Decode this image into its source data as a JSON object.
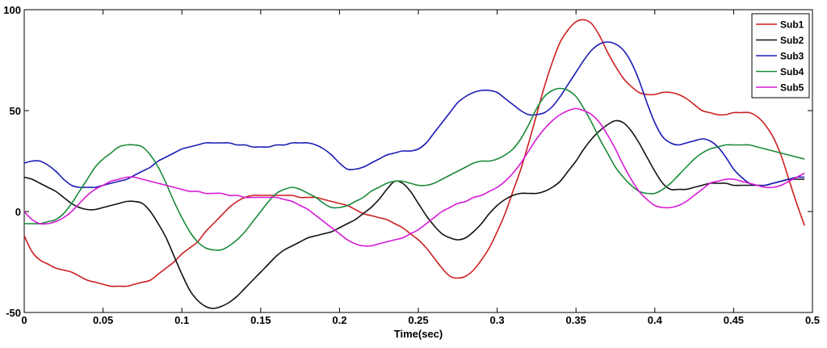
{
  "chart_data": {
    "type": "line",
    "title": "",
    "xlabel": "Time(sec)",
    "ylabel": "",
    "xlim": [
      0,
      0.5
    ],
    "ylim": [
      -50,
      100
    ],
    "xticks": [
      0,
      0.05,
      0.1,
      0.15,
      0.2,
      0.25,
      0.3,
      0.35,
      0.4,
      0.45,
      0.5
    ],
    "xtick_labels": [
      "0",
      "0.05",
      "0.1",
      "0.15",
      "0.2",
      "0.25",
      "0.3",
      "0.35",
      "0.4",
      "0.45",
      "0.5"
    ],
    "yticks": [
      -50,
      0,
      50,
      100
    ],
    "ytick_labels": [
      "-50",
      "0",
      "50",
      "100"
    ],
    "grid": false,
    "legend_position": "top-right",
    "x": [
      0,
      0.005,
      0.01,
      0.015,
      0.02,
      0.025,
      0.03,
      0.035,
      0.04,
      0.045,
      0.05,
      0.055,
      0.06,
      0.065,
      0.07,
      0.075,
      0.08,
      0.085,
      0.09,
      0.095,
      0.1,
      0.105,
      0.11,
      0.115,
      0.12,
      0.125,
      0.13,
      0.135,
      0.14,
      0.145,
      0.15,
      0.155,
      0.16,
      0.165,
      0.17,
      0.175,
      0.18,
      0.185,
      0.19,
      0.195,
      0.2,
      0.205,
      0.21,
      0.215,
      0.22,
      0.225,
      0.23,
      0.235,
      0.24,
      0.245,
      0.25,
      0.255,
      0.26,
      0.265,
      0.27,
      0.275,
      0.28,
      0.285,
      0.29,
      0.295,
      0.3,
      0.305,
      0.31,
      0.315,
      0.32,
      0.325,
      0.33,
      0.335,
      0.34,
      0.345,
      0.35,
      0.355,
      0.36,
      0.365,
      0.37,
      0.375,
      0.38,
      0.385,
      0.39,
      0.395,
      0.4,
      0.405,
      0.41,
      0.415,
      0.42,
      0.425,
      0.43,
      0.435,
      0.44,
      0.445,
      0.45,
      0.455,
      0.46,
      0.465,
      0.47,
      0.475,
      0.48,
      0.485,
      0.49,
      0.495
    ],
    "series": [
      {
        "name": "Sub1",
        "color": "#cc1f1f",
        "values": [
          -12,
          -20,
          -24,
          -26,
          -28,
          -29,
          -30,
          -32,
          -34,
          -35,
          -36,
          -37,
          -37,
          -37,
          -36,
          -35,
          -34,
          -31,
          -28,
          -25,
          -21,
          -18,
          -15,
          -10,
          -6,
          -2,
          2,
          5,
          7,
          8,
          8,
          8,
          8,
          8,
          8,
          7,
          7,
          7,
          6,
          5,
          4,
          3,
          1,
          -1,
          -2,
          -3,
          -4,
          -6,
          -8,
          -11,
          -14,
          -18,
          -23,
          -28,
          -32,
          -33,
          -32,
          -29,
          -24,
          -18,
          -10,
          -1,
          10,
          21,
          34,
          48,
          62,
          74,
          84,
          90,
          94,
          95,
          93,
          87,
          79,
          72,
          66,
          62,
          59,
          58,
          58,
          59,
          59,
          58,
          56,
          53,
          50,
          49,
          48,
          48,
          49,
          49,
          49,
          47,
          43,
          37,
          28,
          16,
          4,
          -7
        ]
      },
      {
        "name": "Sub2",
        "color": "#111111",
        "values": [
          17,
          16,
          14,
          12,
          10,
          7,
          4,
          2,
          1,
          1,
          2,
          3,
          4,
          5,
          5,
          4,
          0,
          -6,
          -13,
          -22,
          -31,
          -39,
          -44,
          -47,
          -48,
          -47,
          -45,
          -42,
          -38,
          -34,
          -30,
          -26,
          -22,
          -19,
          -17,
          -15,
          -13,
          -12,
          -11,
          -10,
          -8,
          -6,
          -4,
          -1,
          2,
          6,
          11,
          15,
          14,
          10,
          4,
          -2,
          -7,
          -11,
          -13,
          -14,
          -13,
          -10,
          -6,
          -1,
          3,
          6,
          8,
          9,
          9,
          9,
          10,
          12,
          15,
          20,
          25,
          31,
          36,
          40,
          43,
          45,
          44,
          40,
          34,
          27,
          20,
          14,
          11,
          11,
          11,
          12,
          13,
          14,
          14,
          14,
          13,
          13,
          13,
          13,
          13,
          14,
          15,
          16,
          16,
          16
        ]
      },
      {
        "name": "Sub3",
        "color": "#1b1bb5",
        "values": [
          24,
          25,
          25,
          23,
          20,
          16,
          13,
          12,
          12,
          12,
          13,
          14,
          15,
          16,
          18,
          20,
          22,
          25,
          27,
          29,
          31,
          32,
          33,
          34,
          34,
          34,
          34,
          33,
          33,
          32,
          32,
          32,
          33,
          33,
          34,
          34,
          34,
          33,
          31,
          28,
          24,
          21,
          21,
          22,
          24,
          26,
          28,
          29,
          30,
          30,
          31,
          34,
          39,
          44,
          49,
          54,
          57,
          59,
          60,
          60,
          59,
          56,
          53,
          50,
          48,
          48,
          49,
          52,
          57,
          63,
          69,
          75,
          80,
          83,
          84,
          83,
          80,
          74,
          65,
          54,
          44,
          37,
          34,
          33,
          34,
          35,
          36,
          35,
          32,
          27,
          21,
          17,
          14,
          13,
          13,
          14,
          15,
          16,
          17,
          17
        ]
      },
      {
        "name": "Sub4",
        "color": "#1a8a3a",
        "values": [
          -6,
          -6,
          -6,
          -5,
          -4,
          -1,
          4,
          10,
          16,
          22,
          26,
          29,
          32,
          33,
          33,
          32,
          28,
          22,
          14,
          5,
          -3,
          -10,
          -15,
          -18,
          -19,
          -19,
          -17,
          -14,
          -10,
          -5,
          0,
          5,
          9,
          11,
          12,
          11,
          9,
          7,
          4,
          2,
          2,
          3,
          5,
          7,
          10,
          12,
          14,
          15,
          15,
          14,
          13,
          13,
          14,
          16,
          18,
          20,
          22,
          24,
          25,
          25,
          26,
          28,
          31,
          36,
          43,
          51,
          57,
          60,
          61,
          60,
          57,
          51,
          44,
          36,
          29,
          22,
          17,
          13,
          10,
          9,
          9,
          11,
          14,
          18,
          22,
          26,
          29,
          31,
          32,
          33,
          33,
          33,
          33,
          32,
          31,
          30,
          29,
          28,
          27,
          26
        ]
      },
      {
        "name": "Sub5",
        "color": "#d61ad6",
        "values": [
          0,
          -4,
          -6,
          -6,
          -5,
          -3,
          0,
          4,
          8,
          11,
          13,
          15,
          16,
          17,
          17,
          16,
          15,
          14,
          13,
          12,
          11,
          10,
          10,
          9,
          9,
          9,
          8,
          8,
          7,
          7,
          7,
          7,
          7,
          6,
          5,
          3,
          1,
          -2,
          -5,
          -8,
          -11,
          -14,
          -16,
          -17,
          -17,
          -16,
          -15,
          -14,
          -13,
          -11,
          -9,
          -6,
          -3,
          0,
          2,
          4,
          5,
          7,
          8,
          10,
          12,
          15,
          19,
          24,
          30,
          36,
          41,
          45,
          48,
          50,
          51,
          50,
          48,
          44,
          38,
          31,
          23,
          16,
          10,
          6,
          3,
          2,
          2,
          3,
          5,
          8,
          11,
          14,
          15,
          16,
          16,
          15,
          14,
          13,
          12,
          12,
          13,
          15,
          17,
          19
        ]
      }
    ]
  }
}
